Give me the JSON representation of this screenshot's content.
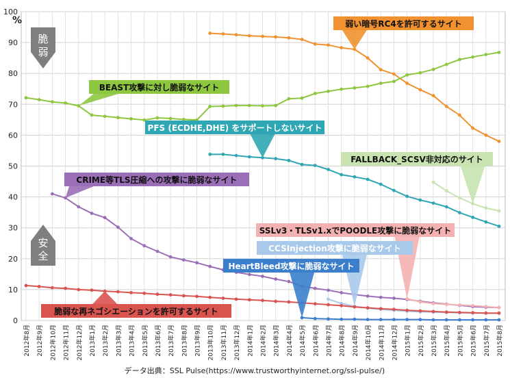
{
  "chart_data": {
    "type": "line",
    "yunit": "%",
    "ylim": [
      0,
      100
    ],
    "yticks": [
      0,
      10,
      20,
      30,
      40,
      50,
      60,
      70,
      80,
      90,
      100
    ],
    "categories": [
      "2012年8月",
      "2012年9月",
      "2012年10月",
      "2012年11月",
      "2012年12月",
      "2013年1月",
      "2013年2月",
      "2013年3月",
      "2013年4月",
      "2013年5月",
      "2013年6月",
      "2013年7月",
      "2013年8月",
      "2013年9月",
      "2013年10月",
      "2013年11月",
      "2013年12月",
      "2014年1月",
      "2014年2月",
      "2014年3月",
      "2014年4月",
      "2014年5月",
      "2014年6月",
      "2014年7月",
      "2014年8月",
      "2014年9月",
      "2014年10月",
      "2014年11月",
      "2014年12月",
      "2015年1月",
      "2015年2月",
      "2015年3月",
      "2015年4月",
      "2015年5月",
      "2015年6月",
      "2015年7月",
      "2015年8月"
    ],
    "y_annotations": {
      "top": "脆弱",
      "bottom": "安全"
    },
    "source": "データ出典：SSL Pulse(https://www.trustworthyinternet.org/ssl-pulse/)",
    "series": [
      {
        "name": "弱い暗号RC4を許可するサイト",
        "color": "#f0922f",
        "values": [
          null,
          null,
          null,
          null,
          null,
          null,
          null,
          null,
          null,
          null,
          null,
          null,
          null,
          null,
          93.0,
          92.8,
          92.5,
          92.2,
          92.0,
          91.8,
          91.5,
          91.0,
          89.5,
          89.2,
          88.3,
          87.8,
          85.0,
          81.2,
          79.8,
          76.8,
          74.7,
          72.8,
          69.3,
          66.5,
          62.3,
          60.0,
          58.0
        ]
      },
      {
        "name": "BEAST攻撃に対し脆弱なサイト",
        "color": "#8dc63f",
        "values": [
          72.1,
          71.5,
          70.8,
          70.4,
          69.5,
          66.5,
          66.1,
          65.7,
          65.3,
          64.9,
          65.6,
          65.4,
          65.1,
          64.9,
          69.3,
          69.4,
          69.6,
          69.6,
          69.5,
          69.6,
          71.8,
          72.0,
          73.5,
          74.2,
          74.9,
          75.3,
          75.8,
          76.8,
          77.4,
          79.5,
          80.2,
          81.3,
          82.9,
          84.5,
          85.3,
          86.1,
          86.8
        ]
      },
      {
        "name": "PFS (ECDHE,DHE) をサポートしないサイト",
        "color": "#2fa6b4",
        "values": [
          null,
          null,
          null,
          null,
          null,
          null,
          null,
          null,
          null,
          null,
          null,
          null,
          null,
          null,
          53.8,
          53.8,
          53.4,
          53.0,
          52.7,
          52.4,
          51.8,
          50.5,
          50.2,
          48.9,
          47.2,
          46.5,
          45.7,
          44.1,
          42.1,
          40.2,
          39.0,
          38.0,
          36.8,
          34.9,
          33.4,
          31.9,
          30.5
        ]
      },
      {
        "name": "FALLBACK_SCSV非対応のサイト",
        "color": "#c8e3b0",
        "values": [
          null,
          null,
          null,
          null,
          null,
          null,
          null,
          null,
          null,
          null,
          null,
          null,
          null,
          null,
          null,
          null,
          null,
          null,
          null,
          null,
          null,
          null,
          null,
          null,
          null,
          null,
          null,
          null,
          null,
          null,
          null,
          44.8,
          42.0,
          39.7,
          37.8,
          36.4,
          35.5
        ]
      },
      {
        "name": "CRIME等TLS圧縮への攻撃に脆弱なサイト",
        "color": "#9b6fb8",
        "values": [
          null,
          null,
          41.0,
          39.7,
          36.8,
          34.7,
          33.3,
          30.2,
          26.5,
          24.2,
          22.4,
          20.6,
          19.6,
          18.7,
          17.5,
          16.4,
          15.6,
          14.9,
          14.3,
          13.4,
          12.6,
          11.1,
          10.4,
          9.8,
          9.0,
          8.4,
          7.9,
          7.5,
          7.2,
          6.8,
          6.2,
          5.7,
          5.3,
          4.9,
          4.5,
          4.3,
          4.2
        ]
      },
      {
        "name": "SSLv3・TLSv1.xでPOODLE攻撃に脆弱なサイト",
        "color": "#f4b1b1",
        "values": [
          null,
          null,
          null,
          null,
          null,
          null,
          null,
          null,
          null,
          null,
          null,
          null,
          null,
          null,
          null,
          null,
          null,
          null,
          null,
          null,
          null,
          null,
          null,
          null,
          null,
          null,
          null,
          null,
          null,
          7.0,
          6.0,
          5.5,
          5.2,
          5.0,
          4.8,
          4.5,
          4.2
        ]
      },
      {
        "name": "CCSInjection攻撃に脆弱なサイト",
        "color": "#a9c9ea",
        "values": [
          null,
          null,
          null,
          null,
          null,
          null,
          null,
          null,
          null,
          null,
          null,
          null,
          null,
          null,
          null,
          null,
          null,
          null,
          null,
          null,
          null,
          null,
          null,
          6.9,
          5.5,
          4.6,
          4.0,
          3.6,
          3.3,
          3.0,
          2.8,
          2.7,
          2.6,
          2.5,
          2.4,
          2.4,
          2.3
        ]
      },
      {
        "name": "HeartBleed攻撃に脆弱なサイト",
        "color": "#3b7fcc",
        "values": [
          null,
          null,
          null,
          null,
          null,
          null,
          null,
          null,
          null,
          null,
          null,
          null,
          null,
          null,
          null,
          null,
          null,
          null,
          null,
          null,
          null,
          0.9,
          0.6,
          0.5,
          0.4,
          0.4,
          0.3,
          0.3,
          0.3,
          0.3,
          0.3,
          0.2,
          0.2,
          0.2,
          0.2,
          0.2,
          0.2
        ]
      },
      {
        "name": "脆弱な再ネゴシエーションを許可するサイト",
        "color": "#d9534f",
        "values": [
          11.3,
          11.0,
          10.6,
          10.4,
          10.0,
          9.8,
          9.5,
          9.3,
          9.0,
          8.8,
          8.5,
          8.3,
          8.0,
          7.8,
          7.5,
          7.2,
          6.9,
          6.7,
          6.5,
          6.2,
          6.0,
          5.7,
          5.4,
          5.1,
          4.8,
          4.4,
          4.1,
          3.8,
          3.6,
          3.3,
          3.1,
          2.9,
          2.7,
          2.6,
          2.5,
          2.4,
          2.4
        ]
      }
    ]
  }
}
